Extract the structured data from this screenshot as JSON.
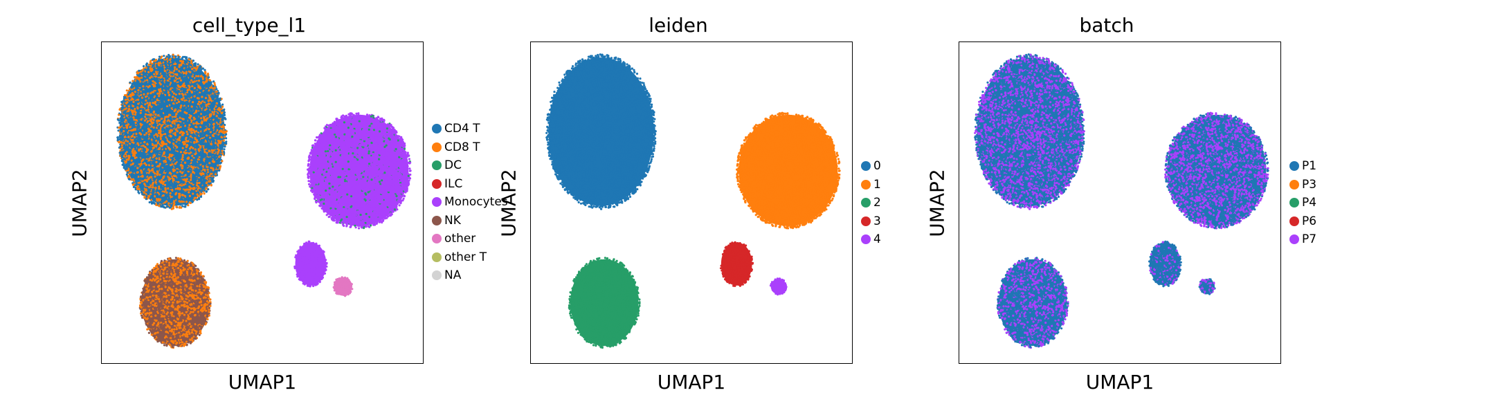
{
  "chart_data": [
    {
      "type": "scatter",
      "title": "cell_type_l1",
      "xlabel": "UMAP1",
      "ylabel": "UMAP2",
      "grid": false,
      "ticks": "none",
      "legend_position": "right",
      "legend": [
        {
          "name": "CD4 T",
          "color": "#1f77b4"
        },
        {
          "name": "CD8 T",
          "color": "#ff7f0e"
        },
        {
          "name": "DC",
          "color": "#279e68"
        },
        {
          "name": "ILC",
          "color": "#d62728"
        },
        {
          "name": "Monocytes",
          "color": "#aa40fc"
        },
        {
          "name": "NK",
          "color": "#8c564b"
        },
        {
          "name": "other",
          "color": "#e377c2"
        },
        {
          "name": "other T",
          "color": "#b5bd61"
        },
        {
          "name": "NA",
          "color": "#d3d3d3"
        }
      ],
      "clusters": [
        {
          "cx": 0.22,
          "cy": 0.72,
          "rx": 0.17,
          "ry": 0.24,
          "colors": [
            "#1f77b4",
            "#ff7f0e"
          ],
          "weights": [
            0.6,
            0.4
          ]
        },
        {
          "cx": 0.8,
          "cy": 0.6,
          "rx": 0.16,
          "ry": 0.18,
          "colors": [
            "#aa40fc",
            "#279e68"
          ],
          "weights": [
            0.93,
            0.07
          ]
        },
        {
          "cx": 0.65,
          "cy": 0.31,
          "rx": 0.05,
          "ry": 0.07,
          "colors": [
            "#aa40fc"
          ],
          "weights": [
            1
          ]
        },
        {
          "cx": 0.75,
          "cy": 0.24,
          "rx": 0.03,
          "ry": 0.03,
          "colors": [
            "#e377c2"
          ],
          "weights": [
            1
          ]
        },
        {
          "cx": 0.23,
          "cy": 0.19,
          "rx": 0.11,
          "ry": 0.14,
          "colors": [
            "#8c564b",
            "#ff7f0e"
          ],
          "weights": [
            0.55,
            0.45
          ]
        }
      ]
    },
    {
      "type": "scatter",
      "title": "leiden",
      "xlabel": "UMAP1",
      "ylabel": "UMAP2",
      "grid": false,
      "ticks": "none",
      "legend_position": "right",
      "legend": [
        {
          "name": "0",
          "color": "#1f77b4"
        },
        {
          "name": "1",
          "color": "#ff7f0e"
        },
        {
          "name": "2",
          "color": "#279e68"
        },
        {
          "name": "3",
          "color": "#d62728"
        },
        {
          "name": "4",
          "color": "#aa40fc"
        }
      ],
      "clusters": [
        {
          "cx": 0.22,
          "cy": 0.72,
          "rx": 0.17,
          "ry": 0.24,
          "colors": [
            "#1f77b4"
          ],
          "weights": [
            1
          ]
        },
        {
          "cx": 0.8,
          "cy": 0.6,
          "rx": 0.16,
          "ry": 0.18,
          "colors": [
            "#ff7f0e"
          ],
          "weights": [
            1
          ]
        },
        {
          "cx": 0.64,
          "cy": 0.31,
          "rx": 0.05,
          "ry": 0.07,
          "colors": [
            "#d62728"
          ],
          "weights": [
            1
          ]
        },
        {
          "cx": 0.77,
          "cy": 0.24,
          "rx": 0.025,
          "ry": 0.025,
          "colors": [
            "#aa40fc"
          ],
          "weights": [
            1
          ]
        },
        {
          "cx": 0.23,
          "cy": 0.19,
          "rx": 0.11,
          "ry": 0.14,
          "colors": [
            "#279e68"
          ],
          "weights": [
            1
          ]
        }
      ]
    },
    {
      "type": "scatter",
      "title": "batch",
      "xlabel": "UMAP1",
      "ylabel": "UMAP2",
      "grid": false,
      "ticks": "none",
      "legend_position": "right",
      "legend": [
        {
          "name": "P1",
          "color": "#1f77b4"
        },
        {
          "name": "P3",
          "color": "#ff7f0e"
        },
        {
          "name": "P4",
          "color": "#279e68"
        },
        {
          "name": "P6",
          "color": "#d62728"
        },
        {
          "name": "P7",
          "color": "#aa40fc"
        }
      ],
      "clusters": [
        {
          "cx": 0.22,
          "cy": 0.72,
          "rx": 0.17,
          "ry": 0.24,
          "colors": [
            "#1f77b4",
            "#aa40fc"
          ],
          "weights": [
            0.55,
            0.45
          ]
        },
        {
          "cx": 0.8,
          "cy": 0.6,
          "rx": 0.16,
          "ry": 0.18,
          "colors": [
            "#1f77b4",
            "#aa40fc"
          ],
          "weights": [
            0.5,
            0.5
          ]
        },
        {
          "cx": 0.64,
          "cy": 0.31,
          "rx": 0.05,
          "ry": 0.07,
          "colors": [
            "#1f77b4",
            "#aa40fc"
          ],
          "weights": [
            0.7,
            0.3
          ]
        },
        {
          "cx": 0.77,
          "cy": 0.24,
          "rx": 0.025,
          "ry": 0.025,
          "colors": [
            "#1f77b4",
            "#aa40fc"
          ],
          "weights": [
            0.6,
            0.4
          ]
        },
        {
          "cx": 0.23,
          "cy": 0.19,
          "rx": 0.11,
          "ry": 0.14,
          "colors": [
            "#1f77b4",
            "#aa40fc"
          ],
          "weights": [
            0.6,
            0.4
          ]
        }
      ]
    }
  ]
}
